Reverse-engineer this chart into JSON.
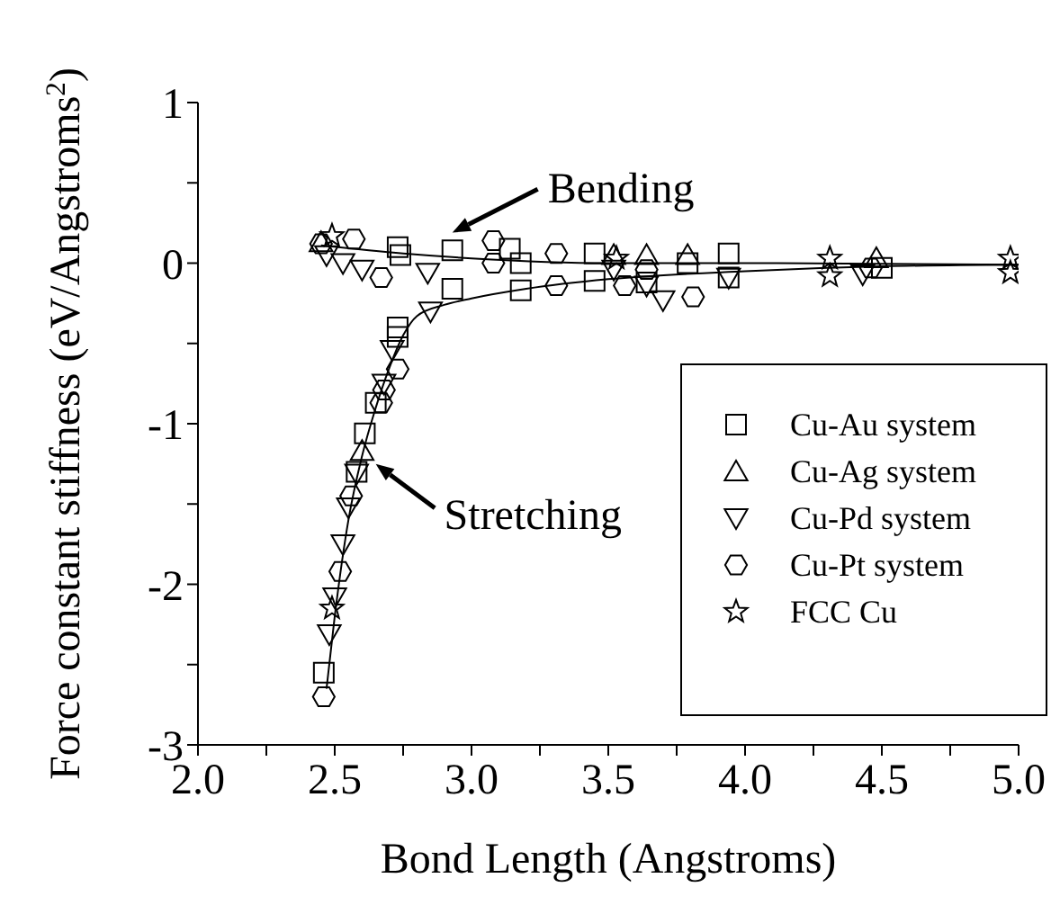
{
  "chart_data": {
    "type": "scatter",
    "xlabel": "Bond Length (Angstroms)",
    "ylabel": "Force constant stiffness (eV/Angstroms$^{2}$)",
    "xlim": [
      2.0,
      5.0
    ],
    "xticks": [
      {
        "value": 2,
        "label": "2.0"
      },
      {
        "value": 2.25,
        "label": null
      },
      {
        "value": 2.5,
        "label": "2.5"
      },
      {
        "value": 2.75,
        "label": null
      },
      {
        "value": 3,
        "label": "3.0"
      },
      {
        "value": 3.25,
        "label": null
      },
      {
        "value": 3.5,
        "label": "3.5"
      },
      {
        "value": 3.75,
        "label": null
      },
      {
        "value": 4,
        "label": "4.0"
      },
      {
        "value": 4.25,
        "label": null
      },
      {
        "value": 4.5,
        "label": "4.5"
      },
      {
        "value": 4.75,
        "label": null
      },
      {
        "value": 5,
        "label": "5.0"
      }
    ],
    "ylim": [
      -3,
      1
    ],
    "yticks": [
      -3,
      {
        "value": -2.5,
        "label": null
      },
      -2,
      {
        "value": -1.5,
        "label": null
      },
      -1,
      {
        "value": -0.5,
        "label": null
      },
      0,
      {
        "value": 0.5,
        "label": null
      },
      1
    ],
    "grid": false,
    "legend": "right",
    "annotations": [
      {
        "text": "Bending",
        "x": 2.93,
        "y": 0.19
      },
      {
        "text": "Stretching",
        "x": 2.65,
        "y": -1.25
      }
    ],
    "series": [
      {
        "name": "Cu-Au system",
        "color": "#000000",
        "x": [
          2.46,
          2.61,
          2.58,
          2.65,
          2.73,
          2.73,
          2.74,
          2.73,
          2.93,
          2.93,
          3.14,
          3.18,
          3.18,
          3.45,
          3.45,
          3.94,
          3.94,
          4.5,
          3.79,
          3.64
        ],
        "values": [
          -2.55,
          -1.06,
          -1.3,
          -0.87,
          -0.4,
          -0.46,
          0.05,
          0.1,
          0.08,
          -0.16,
          0.09,
          0,
          -0.17,
          0.06,
          -0.11,
          0.06,
          -0.09,
          -0.03,
          0,
          -0.12
        ]
      },
      {
        "name": "Cu-Ag system",
        "color": "#000000",
        "x": [
          2.6,
          4.48,
          3.52,
          3.64,
          2.45,
          3.79
        ],
        "values": [
          -1.17,
          0.03,
          0.05,
          0.05,
          0.13,
          0.05
        ]
      },
      {
        "name": "Cu-Pd system",
        "color": "#000000",
        "x": [
          2.48,
          2.5,
          2.53,
          2.55,
          2.58,
          2.71,
          2.68,
          2.85,
          2.84,
          2.47,
          2.53,
          2.6,
          3.7,
          3.94,
          4.43,
          3.52,
          3.64
        ],
        "values": [
          -2.31,
          -2.08,
          -1.75,
          -1.52,
          -1.31,
          -0.54,
          -0.75,
          -0.3,
          -0.06,
          0.05,
          0,
          -0.04,
          -0.23,
          -0.09,
          -0.07,
          -0.04,
          -0.14
        ]
      },
      {
        "name": "Cu-Pt system",
        "color": "#000000",
        "x": [
          2.46,
          2.52,
          2.56,
          2.67,
          2.73,
          2.68,
          2.67,
          3.08,
          3.08,
          3.31,
          3.31,
          3.56,
          3.81,
          4.46,
          2.45,
          2.57,
          3.64
        ],
        "values": [
          -2.7,
          -1.92,
          -1.45,
          -0.87,
          -0.66,
          -0.79,
          -0.09,
          0.14,
          0,
          0.06,
          -0.14,
          -0.14,
          -0.21,
          -0.03,
          0.12,
          0.15,
          -0.04
        ]
      },
      {
        "name": "FCC Cu",
        "color": "#000000",
        "x": [
          2.49,
          2.49,
          4.31,
          4.31,
          4.97,
          4.97,
          3.53
        ],
        "values": [
          -2.15,
          0.17,
          0.03,
          -0.08,
          0.03,
          -0.06,
          0.03
        ]
      },
      {
        "type": "line",
        "color": "#000000",
        "x": [
          2.45,
          2.75,
          3.0,
          3.5,
          4.0,
          5.0
        ],
        "values": [
          0.11,
          0.06,
          0.03,
          0,
          0,
          -0.01
        ]
      },
      {
        "type": "line",
        "color": "#000000",
        "x": [
          2.47,
          2.5,
          2.55,
          2.6,
          2.65,
          2.7,
          2.75,
          2.8,
          2.9,
          3.0,
          3.2,
          3.5,
          4.0,
          4.5,
          5.0
        ],
        "values": [
          -2.65,
          -2.2,
          -1.6,
          -1.2,
          -0.9,
          -0.65,
          -0.45,
          -0.33,
          -0.26,
          -0.22,
          -0.16,
          -0.1,
          -0.05,
          -0.02,
          -0.01
        ]
      }
    ]
  }
}
